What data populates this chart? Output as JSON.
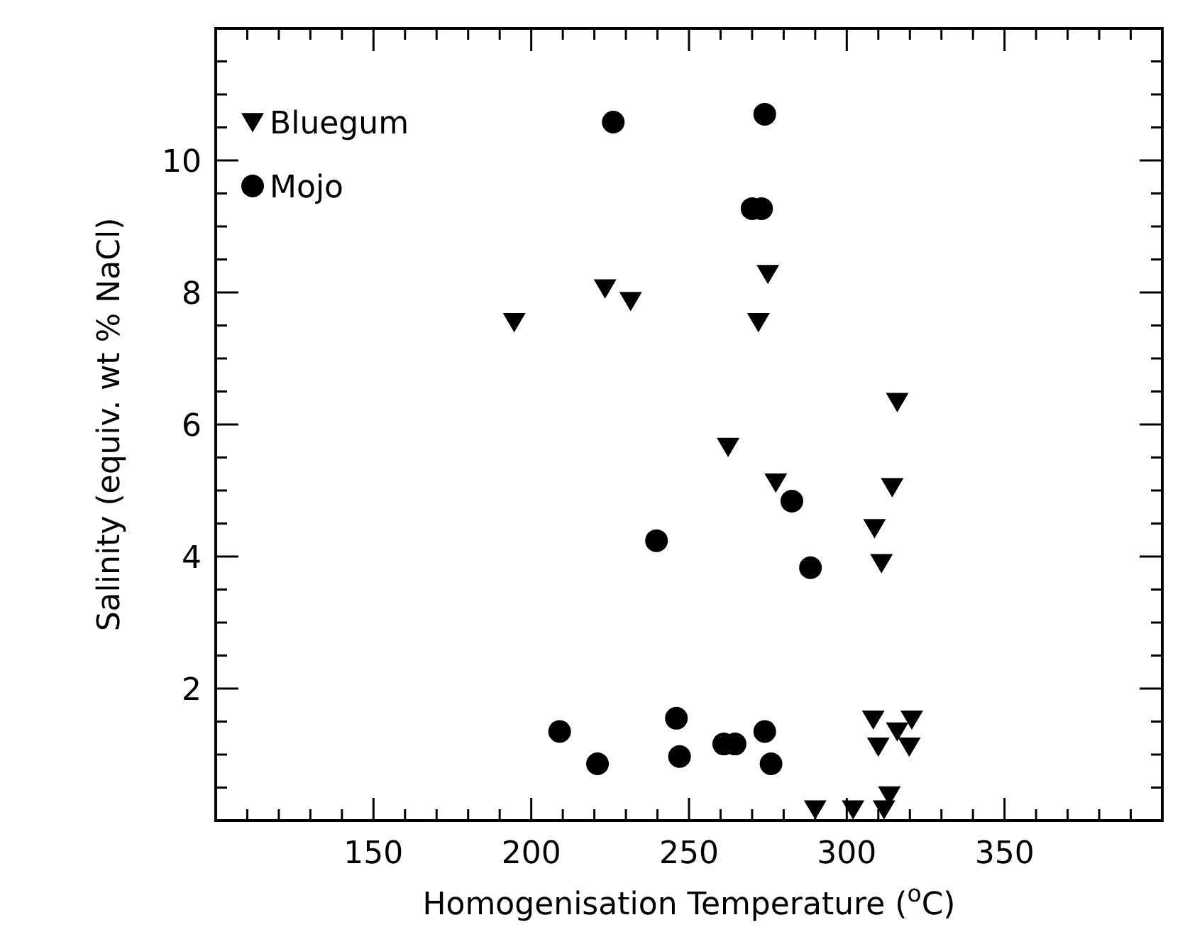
{
  "chart_data": {
    "type": "scatter",
    "xlabel": "Homogenisation Temperature ($^{o}$C)",
    "ylabel": "Salinity (equiv. wt % NaCl)",
    "xlim": [
      100,
      400
    ],
    "ylim": [
      0,
      12
    ],
    "xticks": [
      {
        "value": 100,
        "label": null
      },
      {
        "value": 110,
        "label": null
      },
      {
        "value": 120,
        "label": null
      },
      {
        "value": 130,
        "label": null
      },
      {
        "value": 140,
        "label": null
      },
      150,
      {
        "value": 160,
        "label": null
      },
      {
        "value": 170,
        "label": null
      },
      {
        "value": 180,
        "label": null
      },
      {
        "value": 190,
        "label": null
      },
      200,
      {
        "value": 210,
        "label": null
      },
      {
        "value": 220,
        "label": null
      },
      {
        "value": 230,
        "label": null
      },
      {
        "value": 240,
        "label": null
      },
      250,
      {
        "value": 260,
        "label": null
      },
      {
        "value": 270,
        "label": null
      },
      {
        "value": 280,
        "label": null
      },
      {
        "value": 290,
        "label": null
      },
      300,
      {
        "value": 310,
        "label": null
      },
      {
        "value": 320,
        "label": null
      },
      {
        "value": 330,
        "label": null
      },
      {
        "value": 340,
        "label": null
      },
      350,
      {
        "value": 360,
        "label": null
      },
      {
        "value": 370,
        "label": null
      },
      {
        "value": 380,
        "label": null
      },
      {
        "value": 390,
        "label": null
      }
    ],
    "yticks": [
      {
        "value": 0.5,
        "label": null
      },
      {
        "value": 1,
        "label": null
      },
      {
        "value": 1.5,
        "label": null
      },
      2,
      {
        "value": 2.5,
        "label": null
      },
      {
        "value": 3,
        "label": null
      },
      {
        "value": 3.5,
        "label": null
      },
      4,
      {
        "value": 4.5,
        "label": null
      },
      {
        "value": 5,
        "label": null
      },
      {
        "value": 5.5,
        "label": null
      },
      6,
      {
        "value": 6.5,
        "label": null
      },
      {
        "value": 7,
        "label": null
      },
      {
        "value": 7.5,
        "label": null
      },
      8,
      {
        "value": 8.5,
        "label": null
      },
      {
        "value": 9,
        "label": null
      },
      {
        "value": 9.5,
        "label": null
      },
      10,
      {
        "value": 10.5,
        "label": null
      },
      {
        "value": 11,
        "label": null
      },
      {
        "value": 11.5,
        "label": null
      }
    ],
    "grid": false,
    "legend": "top left",
    "series": [
      {
        "name": "Bluegum",
        "color": "#000000",
        "marker": "triangle",
        "x": [
          194.6,
          223.4,
          231.5,
          272,
          275,
          316,
          262.4,
          277.5,
          314.4,
          308.8,
          311,
          308.4,
          320.6,
          316,
          310,
          319.8,
          290,
          302,
          313.5,
          311.8
        ],
        "values": [
          7.55,
          8.06,
          7.87,
          7.55,
          8.28,
          6.34,
          5.66,
          5.12,
          5.05,
          4.43,
          3.9,
          1.53,
          1.53,
          1.35,
          1.12,
          1.12,
          0.17,
          0.17,
          0.38,
          0.17
        ]
      },
      {
        "name": "Mojo",
        "color": "#000000",
        "marker": "circle",
        "x": [
          226,
          274,
          270,
          273,
          282.6,
          239.7,
          288.5,
          209,
          246,
          221,
          247,
          261,
          264.6,
          274,
          276
        ],
        "values": [
          10.58,
          10.7,
          9.27,
          9.27,
          4.84,
          4.24,
          3.83,
          1.35,
          1.55,
          0.86,
          0.97,
          1.16,
          1.16,
          1.35,
          0.86
        ]
      }
    ]
  }
}
